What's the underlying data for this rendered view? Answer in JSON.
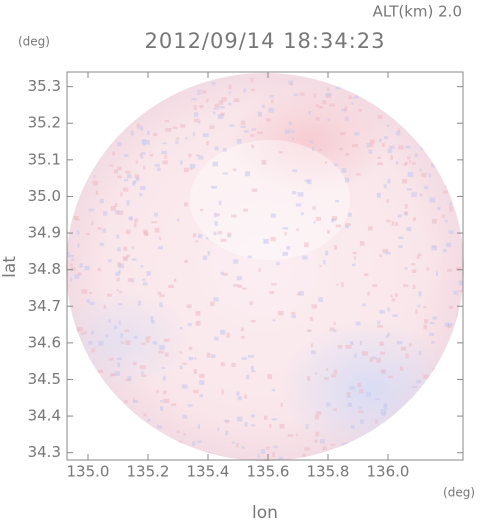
{
  "chart_data": {
    "type": "radar-field",
    "title": "2012/09/14 18:34:23",
    "subtitle": "ALT(km) 2.0",
    "y_unit": "(deg)",
    "x_unit": "(deg)",
    "xlabel": "lon",
    "ylabel": "lat",
    "xlim": [
      134.93,
      136.25
    ],
    "ylim": [
      34.28,
      35.34
    ],
    "xticks": [
      {
        "value": 135.0,
        "label": "135.0"
      },
      135.2,
      135.4,
      135.6,
      135.8,
      {
        "value": 136.0,
        "label": "136.0"
      }
    ],
    "yticks": [
      34.3,
      34.4,
      34.5,
      34.6,
      34.7,
      34.8,
      34.9,
      {
        "value": 35.0,
        "label": "35.0"
      },
      35.1,
      35.2,
      35.3
    ]
  }
}
